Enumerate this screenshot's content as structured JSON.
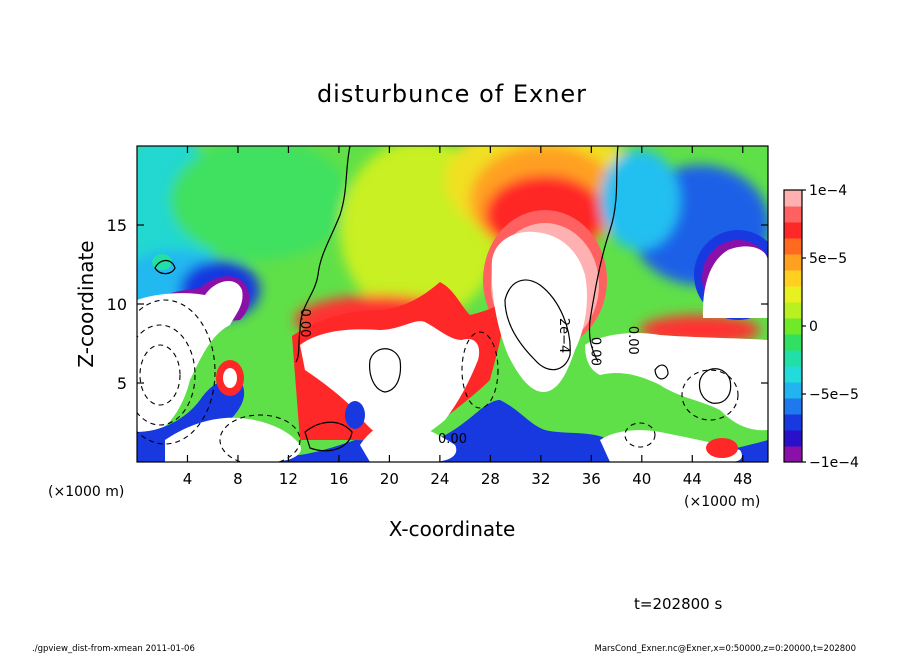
{
  "chart_data": {
    "type": "heatmap",
    "title": "disturbunce of Exner",
    "xlabel": "X-coordinate",
    "ylabel": "Z-coordinate",
    "x_unit_left": "(×1000 m)",
    "x_unit_right": "(×1000 m)",
    "x_ticks": [
      4,
      8,
      12,
      16,
      20,
      24,
      28,
      32,
      36,
      40,
      44,
      48
    ],
    "y_ticks": [
      5,
      10,
      15
    ],
    "xlim": [
      0,
      50
    ],
    "ylim": [
      0,
      20
    ],
    "colorbar": {
      "range": [
        -0.0001,
        0.0001
      ],
      "tick_values": [
        0.0001,
        5e-05,
        0,
        -5e-05,
        -0.0001
      ],
      "tick_labels": [
        "1e−4",
        "5e−5",
        "0",
        "−5e−5",
        "−1e−4"
      ],
      "colors": [
        "#8a10a8",
        "#2a10c8",
        "#1838e0",
        "#1e78ee",
        "#22b4f0",
        "#22dcdc",
        "#20e0a8",
        "#30e060",
        "#70ea28",
        "#b8f020",
        "#e8f020",
        "#ffd020",
        "#ffa020",
        "#ff6a20",
        "#ff2828",
        "#ff6060",
        "#ffb0b0"
      ]
    },
    "contour_labels": [
      {
        "text": "0.00",
        "x": 13.0,
        "z": 8.8
      },
      {
        "text": "0.00",
        "x": 36.0,
        "z": 7.0
      },
      {
        "text": "0.00",
        "x": 39.0,
        "z": 7.7
      },
      {
        "text": "0.00",
        "x": 25.0,
        "z": 1.2
      },
      {
        "text": "2e−4",
        "x": 33.5,
        "z": 8.0
      }
    ],
    "time_label": "t=202800 s",
    "footer_left": "./gpview_dist-from-xmean   2011-01-06",
    "footer_right": "MarsCond_Exner.nc@Exner,x=0:50000,z=0:20000,t=202800"
  }
}
